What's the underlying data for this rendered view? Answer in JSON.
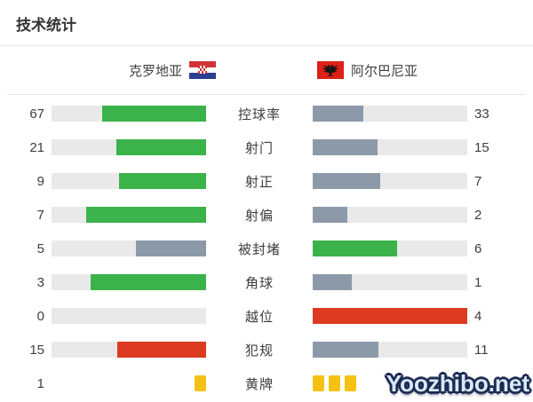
{
  "title": "技术统计",
  "teams": {
    "home": {
      "name": "克罗地亚",
      "flag_icon": "croatia-flag-icon"
    },
    "away": {
      "name": "阿尔巴尼亚",
      "flag_icon": "albania-flag-icon"
    }
  },
  "colors": {
    "green": "#3bb24a",
    "slate": "#8c99a8",
    "red": "#dc3b22",
    "track": "#e9e9e9",
    "card_yellow": "#f5c114",
    "divider": "#e6e6e6",
    "watermark_outline": "#1c2b52",
    "watermark_fill": "#d9e8f6"
  },
  "stats": [
    {
      "label": "控球率",
      "display": "bars",
      "home": {
        "value": 67,
        "style": "green"
      },
      "away": {
        "value": 33,
        "style": "slate"
      }
    },
    {
      "label": "射门",
      "display": "bars",
      "home": {
        "value": 21,
        "style": "green"
      },
      "away": {
        "value": 15,
        "style": "slate"
      }
    },
    {
      "label": "射正",
      "display": "bars",
      "home": {
        "value": 9,
        "style": "green"
      },
      "away": {
        "value": 7,
        "style": "slate"
      }
    },
    {
      "label": "射偏",
      "display": "bars",
      "home": {
        "value": 7,
        "style": "green"
      },
      "away": {
        "value": 2,
        "style": "slate"
      }
    },
    {
      "label": "被封堵",
      "display": "bars",
      "home": {
        "value": 5,
        "style": "slate"
      },
      "away": {
        "value": 6,
        "style": "green"
      }
    },
    {
      "label": "角球",
      "display": "bars",
      "home": {
        "value": 3,
        "style": "green"
      },
      "away": {
        "value": 1,
        "style": "slate"
      }
    },
    {
      "label": "越位",
      "display": "bars",
      "home": {
        "value": 0,
        "style": "green"
      },
      "away": {
        "value": 4,
        "style": "red"
      }
    },
    {
      "label": "犯规",
      "display": "bars",
      "home": {
        "value": 15,
        "style": "red"
      },
      "away": {
        "value": 11,
        "style": "slate"
      }
    },
    {
      "label": "黄牌",
      "display": "cards",
      "home": {
        "value": 1,
        "style": "card_yellow"
      },
      "away": {
        "value": 3,
        "style": "card_yellow",
        "value_hidden": true
      }
    }
  ],
  "chart_data": {
    "type": "bar",
    "subtype": "mirrored-comparison-bars",
    "title": "技术统计",
    "categories": [
      "控球率",
      "射门",
      "射正",
      "射偏",
      "被封堵",
      "角球",
      "越位",
      "犯规",
      "黄牌"
    ],
    "series": [
      {
        "name": "克罗地亚",
        "values": [
          67,
          21,
          9,
          7,
          5,
          3,
          0,
          15,
          1
        ]
      },
      {
        "name": "阿尔巴尼亚",
        "values": [
          33,
          15,
          7,
          2,
          6,
          1,
          4,
          11,
          3
        ]
      }
    ],
    "layout_hints": {
      "fill_rule": "bar fill fraction = value / (home value + away value)",
      "home_bars_anchor": "right (grow toward left edge)",
      "away_bars_anchor": "left (grow toward right edge)",
      "yellow_card_row_rendered_as": "yellow card icons instead of bars",
      "away_yellow_card_count_number": "obscured by watermark"
    }
  },
  "watermark": {
    "text": "Yoozhibo.net"
  }
}
